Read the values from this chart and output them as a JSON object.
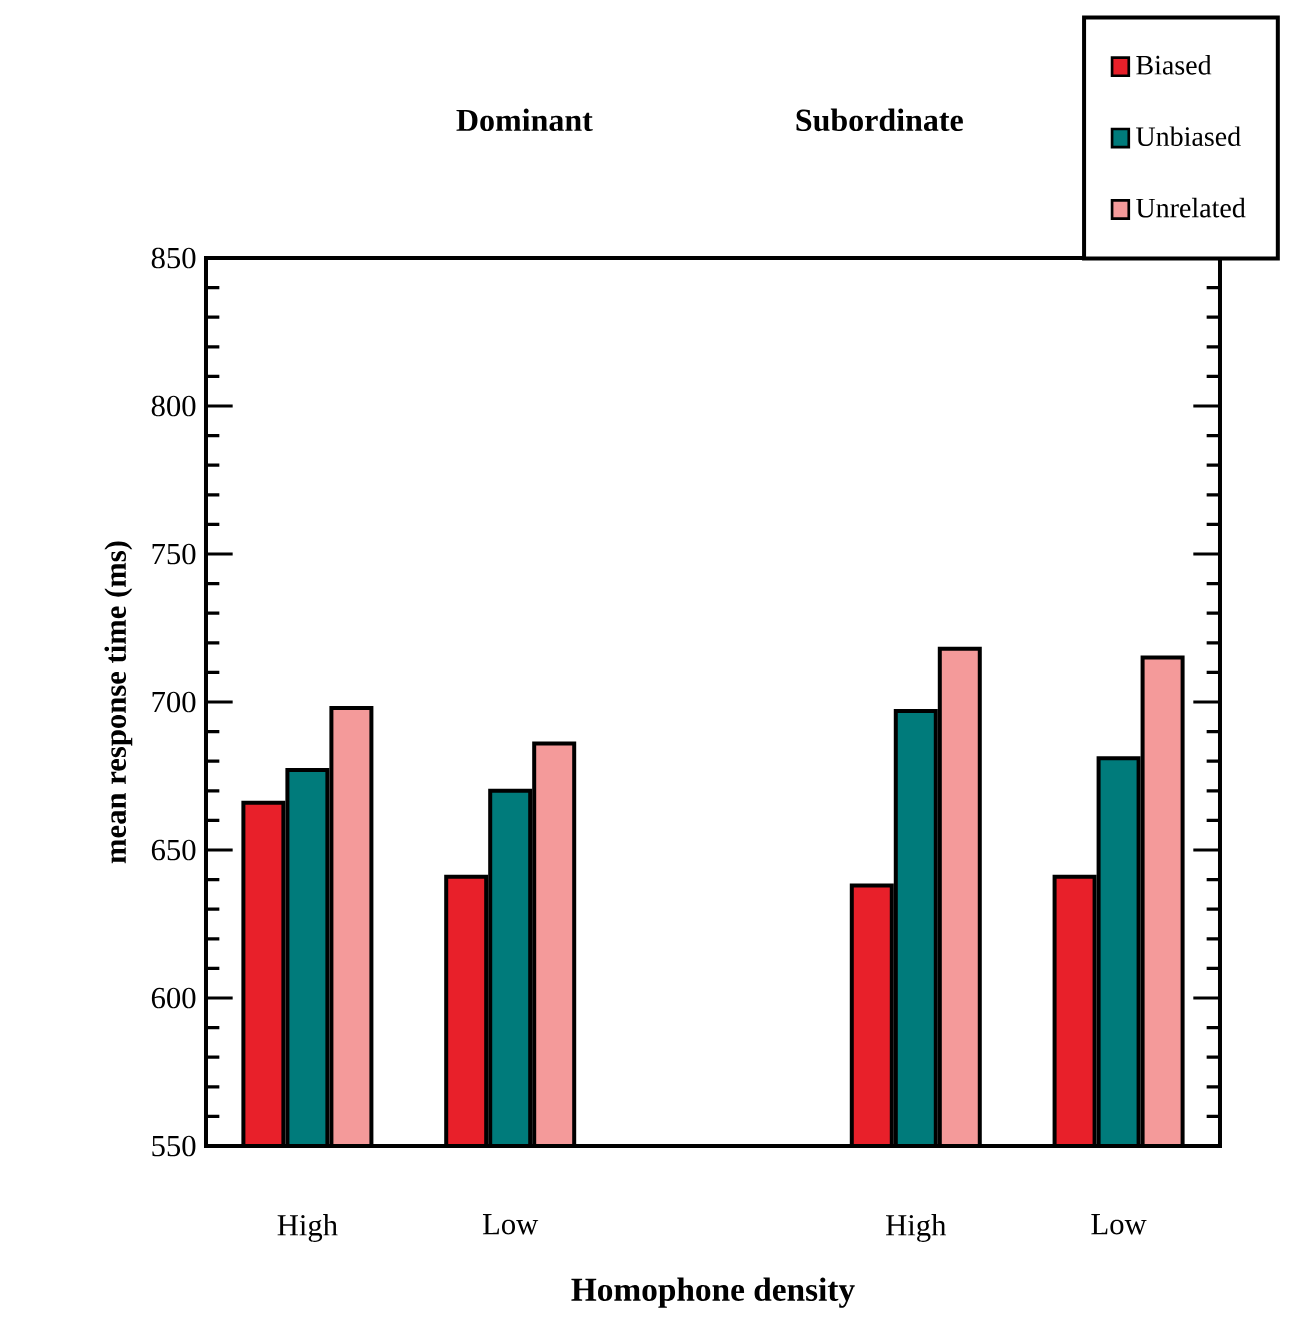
{
  "chart_data": {
    "type": "bar",
    "xlabel": "Homophone density",
    "ylabel": "mean response time (ms)",
    "categories": [
      "High",
      "Low",
      null,
      "High",
      "Low"
    ],
    "series": [
      {
        "name": "Biased",
        "color": "#e8202a",
        "values": [
          666,
          641,
          null,
          638,
          641
        ]
      },
      {
        "name": "Unbiased",
        "color": "#007b7b",
        "values": [
          677,
          670,
          null,
          697,
          681
        ]
      },
      {
        "name": "Unrelated",
        "color": "#f49a9a",
        "values": [
          698,
          686,
          null,
          718,
          715
        ]
      }
    ],
    "ylim": [
      550,
      850
    ],
    "yticks": [
      550,
      600,
      650,
      700,
      750,
      800,
      850
    ],
    "annotations": [
      "Dominant",
      "Subordinate"
    ],
    "legend": "top right"
  }
}
